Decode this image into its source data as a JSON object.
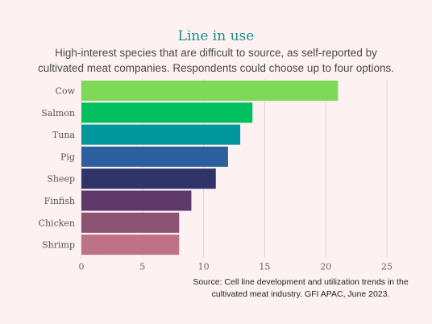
{
  "title": "Line in use",
  "subtitle": "High-interest species that are difficult to source, as self-reported by cultivated meat companies. Respondents could choose up to four options.",
  "source": "Source: Cell line development and utilization trends in the cultivated meat industry. GFI APAC, June 2023.",
  "chart_data": {
    "type": "bar",
    "orientation": "horizontal",
    "categories": [
      "Cow",
      "Salmon",
      "Tuna",
      "Pig",
      "Sheep",
      "Finfish",
      "Chicken",
      "Shrimp"
    ],
    "values": [
      21,
      14,
      13,
      12,
      11,
      9,
      8,
      8
    ],
    "colors": [
      "#7ed957",
      "#00c060",
      "#00979c",
      "#2c5f9e",
      "#2e3468",
      "#5e3868",
      "#8a5273",
      "#bf7186"
    ],
    "xlim": [
      0,
      25
    ],
    "xticks": [
      0,
      5,
      10,
      15,
      20,
      25
    ],
    "grid": true,
    "gridColor": "#e2d6d6"
  }
}
